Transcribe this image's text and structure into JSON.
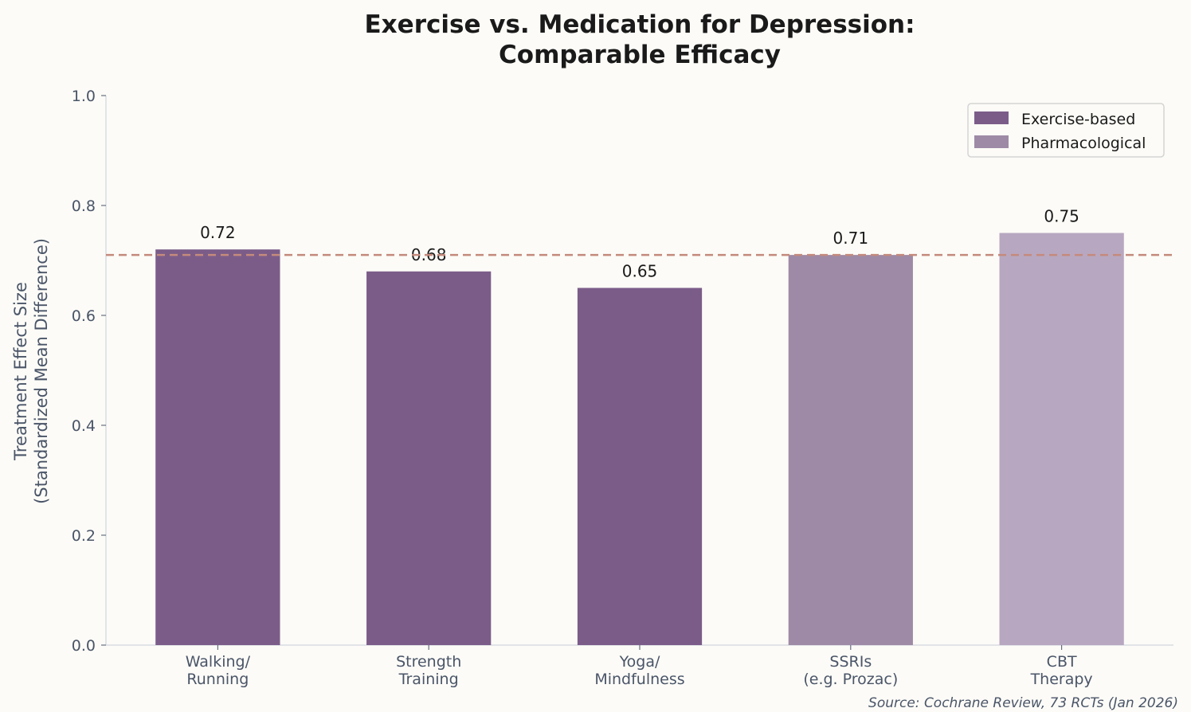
{
  "chart_data": {
    "type": "bar",
    "title": "Exercise vs. Medication for Depression:\nComparable Efficacy",
    "title_lines": [
      "Exercise vs. Medication for Depression:",
      "Comparable Efficacy"
    ],
    "ylabel_lines": [
      "Treatment Effect Size",
      "(Standardized Mean Difference)"
    ],
    "xlabel": "",
    "categories": [
      [
        "Walking/",
        "Running"
      ],
      [
        "Strength",
        "Training"
      ],
      [
        "Yoga/",
        "Mindfulness"
      ],
      [
        "SSRIs",
        "(e.g. Prozac)"
      ],
      [
        "CBT",
        "Therapy"
      ]
    ],
    "values": [
      0.72,
      0.68,
      0.65,
      0.71,
      0.75
    ],
    "value_labels": [
      "0.72",
      "0.68",
      "0.65",
      "0.71",
      "0.75"
    ],
    "bar_colors": [
      "#7b5c89",
      "#7b5c89",
      "#7b5c89",
      "#9e8aa6",
      "#b8a7c0"
    ],
    "ylim": [
      0,
      1.0
    ],
    "yticks": [
      "0.0",
      "0.2",
      "0.4",
      "0.6",
      "0.8",
      "1.0"
    ],
    "reference_line": {
      "y": 0.71,
      "style": "dashed",
      "color": "#c48a7c"
    },
    "grid": false,
    "legend": {
      "placement": "top-right",
      "entries": [
        {
          "label": "Exercise-based",
          "color": "#7b5c89"
        },
        {
          "label": "Pharmacological",
          "color": "#9e8aa6"
        }
      ]
    },
    "source": "Source: Cochrane Review, 73 RCTs (Jan 2026)"
  }
}
